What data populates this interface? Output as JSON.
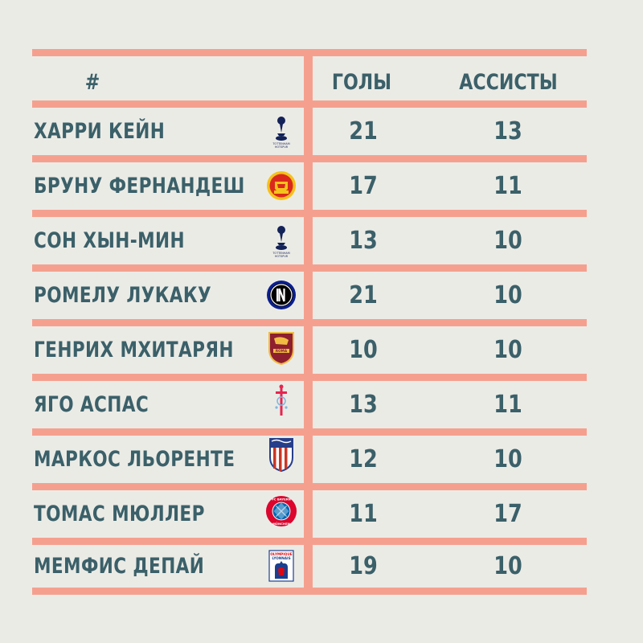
{
  "header": {
    "rank": "#",
    "goals": "ГОЛЫ",
    "assists": "АССИСТЫ"
  },
  "rows": [
    {
      "name": "ХАРРИ КЕЙН",
      "club_icon": "tottenham-crest-icon",
      "goals": "21",
      "assists": "13"
    },
    {
      "name": "БРУНУ ФЕРНАНДЕШ",
      "club_icon": "manchester-united-crest-icon",
      "goals": "17",
      "assists": "11"
    },
    {
      "name": "СОН ХЫН-МИН",
      "club_icon": "tottenham-crest-icon",
      "goals": "13",
      "assists": "10"
    },
    {
      "name": "РОМЕЛУ ЛУКАКУ",
      "club_icon": "inter-crest-icon",
      "goals": "21",
      "assists": "10"
    },
    {
      "name": "ГЕНРИХ МХИТАРЯН",
      "club_icon": "roma-crest-icon",
      "goals": "10",
      "assists": "10"
    },
    {
      "name": "ЯГО АСПАС",
      "club_icon": "celta-crest-icon",
      "goals": "13",
      "assists": "11"
    },
    {
      "name": "МАРКОС ЛЬОРЕНТЕ",
      "club_icon": "atletico-crest-icon",
      "goals": "12",
      "assists": "10"
    },
    {
      "name": "ТОМАС МЮЛЛЕР",
      "club_icon": "bayern-crest-icon",
      "goals": "11",
      "assists": "17"
    },
    {
      "name": "МЕМФИС ДЕПАЙ",
      "club_icon": "lyon-crest-icon",
      "goals": "19",
      "assists": "10"
    }
  ],
  "logo_text": {
    "tottenham": "TOTTENHAM HOTSPUR",
    "manutd": "MANCHESTER UNITED",
    "roma": "ROMA",
    "bayern": "FC BAYERN MÜNCHEN",
    "lyon": "OLYMPIQUE LYONNAIS"
  },
  "colors": {
    "background": "#ebebe6",
    "grid_lines": "#f5a08f",
    "text": "#3b6069"
  }
}
